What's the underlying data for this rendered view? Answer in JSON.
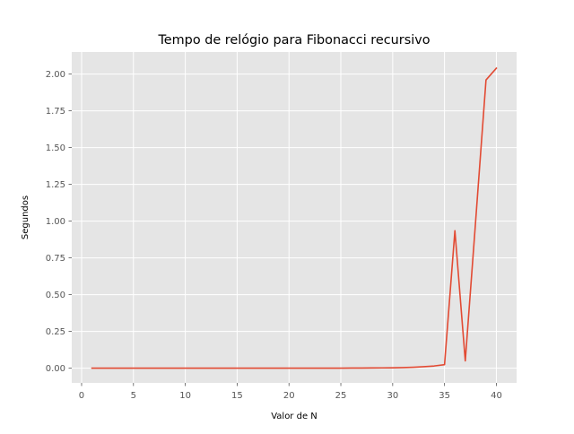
{
  "chart_data": {
    "type": "line",
    "title": "Tempo de relógio para Fibonacci recursivo",
    "xlabel": "Valor de N",
    "ylabel": "Segundos",
    "xlim": [
      -0.95,
      41.95
    ],
    "ylim": [
      -0.1,
      2.15
    ],
    "xticks": [
      0,
      5,
      10,
      15,
      20,
      25,
      30,
      35,
      40
    ],
    "xtick_labels": [
      "0",
      "5",
      "10",
      "15",
      "20",
      "25",
      "30",
      "35",
      "40"
    ],
    "yticks": [
      0,
      0.25,
      0.5,
      0.75,
      1.0,
      1.25,
      1.5,
      1.75,
      2.0
    ],
    "ytick_labels": [
      "0.00",
      "0.25",
      "0.50",
      "0.75",
      "1.00",
      "1.25",
      "1.50",
      "1.75",
      "2.00"
    ],
    "grid": true,
    "style": {
      "background": "#e5e5e5",
      "grid_color": "#ffffff",
      "line_color": "#e24a33"
    },
    "series": [
      {
        "x": [
          1,
          2,
          3,
          4,
          5,
          6,
          7,
          8,
          9,
          10,
          11,
          12,
          13,
          14,
          15,
          16,
          17,
          18,
          19,
          20,
          21,
          22,
          23,
          24,
          25,
          26,
          27,
          28,
          29,
          30,
          31,
          32,
          33,
          34,
          35,
          36,
          37,
          38,
          39,
          40
        ],
        "values": [
          0,
          0,
          0,
          0,
          0,
          0,
          0,
          0,
          0,
          0,
          0,
          0,
          0,
          0,
          0,
          0,
          0,
          0,
          0,
          0,
          0.0001,
          0.0001,
          0.0002,
          0.0003,
          0.0005,
          0.0008,
          0.0013,
          0.002,
          0.0022,
          0.0025,
          0.004,
          0.0065,
          0.01,
          0.015,
          0.024,
          0.935,
          0.05,
          1.0,
          1.96,
          2.04
        ]
      }
    ]
  }
}
